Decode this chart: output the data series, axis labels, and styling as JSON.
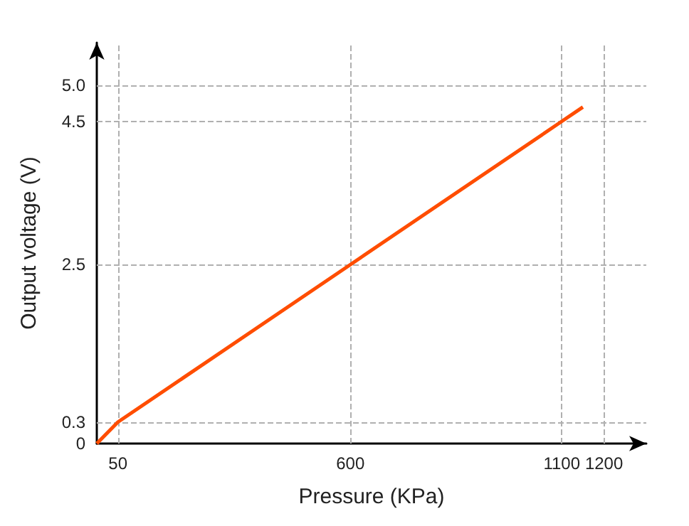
{
  "chart_data": {
    "type": "line",
    "xlabel": "Pressure (KPa)",
    "ylabel": "Output voltage (V)",
    "x": [
      0,
      50,
      600,
      1100,
      1150
    ],
    "series": [
      {
        "color": "#ff4d00",
        "values": [
          0,
          0.3,
          2.5,
          4.5,
          4.7
        ]
      }
    ],
    "xlim": [
      0,
      1300
    ],
    "ylim": [
      0,
      5.6
    ],
    "xticks": [
      50,
      600,
      1100,
      1200
    ],
    "yticks": [
      0,
      0.3,
      2.5,
      4.5,
      {
        "value": 5,
        "label": "5.0"
      }
    ],
    "ref_lines": [
      {
        "axis": "x",
        "value": 50,
        "color": "#b0b0b0",
        "line_style": "dashed"
      },
      {
        "axis": "x",
        "value": 600,
        "color": "#b0b0b0",
        "line_style": "dashed"
      },
      {
        "axis": "x",
        "value": 1100,
        "color": "#b0b0b0",
        "line_style": "dashed"
      },
      {
        "axis": "x",
        "value": 1200,
        "color": "#b0b0b0",
        "line_style": "dashed"
      },
      {
        "axis": "y",
        "value": 0.3,
        "color": "#b0b0b0",
        "line_style": "dashed"
      },
      {
        "axis": "y",
        "value": 2.5,
        "color": "#b0b0b0",
        "line_style": "dashed"
      },
      {
        "axis": "y",
        "value": 4.5,
        "color": "#b0b0b0",
        "line_style": "dashed"
      },
      {
        "axis": "y",
        "value": 5,
        "color": "#b0b0b0",
        "line_style": "dashed"
      }
    ],
    "marker": "none",
    "line_style": "solid"
  }
}
